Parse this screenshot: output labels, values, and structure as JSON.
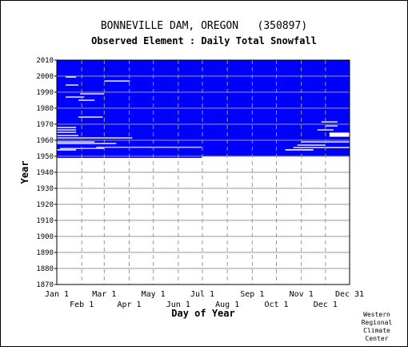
{
  "chart_data": {
    "type": "heatmap",
    "title": "BONNEVILLE DAM, OREGON   (350897)",
    "subtitle": "Observed Element : Daily Total Snowfall",
    "xlabel": "Day of Year",
    "ylabel": "Year",
    "xlim": [
      1,
      365
    ],
    "ylim": [
      1870,
      2010
    ],
    "x_ticks_upper": [
      {
        "label": "Jan 1",
        "day": 1
      },
      {
        "label": "Mar 1",
        "day": 60
      },
      {
        "label": "May 1",
        "day": 121
      },
      {
        "label": "Jul 1",
        "day": 182
      },
      {
        "label": "Sep 1",
        "day": 244
      },
      {
        "label": "Nov 1",
        "day": 305
      },
      {
        "label": "Dec 31",
        "day": 365
      }
    ],
    "x_ticks_lower": [
      {
        "label": "Feb 1",
        "day": 32
      },
      {
        "label": "Apr 1",
        "day": 91
      },
      {
        "label": "Jun 1",
        "day": 152
      },
      {
        "label": "Aug 1",
        "day": 213
      },
      {
        "label": "Oct 1",
        "day": 274
      },
      {
        "label": "Dec 1",
        "day": 335
      }
    ],
    "y_ticks": [
      1870,
      1880,
      1890,
      1900,
      1910,
      1920,
      1930,
      1940,
      1950,
      1960,
      1970,
      1980,
      1990,
      2000,
      2010
    ],
    "data_color": "#0000ff",
    "data_blocks": [
      {
        "day_start": 1,
        "day_end": 365,
        "year_start": 1950,
        "year_end": 2010
      },
      {
        "day_start": 1,
        "day_end": 181,
        "year_start": 1949,
        "year_end": 1950
      }
    ],
    "gaps": [
      {
        "day_start": 1,
        "day_end": 25,
        "year_start": 1953.6,
        "year_end": 1954.4
      },
      {
        "day_start": 5,
        "day_end": 60,
        "year_start": 1954.6,
        "year_end": 1955.2
      },
      {
        "day_start": 50,
        "day_end": 181,
        "year_start": 1955.3,
        "year_end": 1955.9
      },
      {
        "day_start": 1,
        "day_end": 75,
        "year_start": 1957.6,
        "year_end": 1958.3
      },
      {
        "day_start": 1,
        "day_end": 48,
        "year_start": 1958.6,
        "year_end": 1959.3
      },
      {
        "day_start": 1,
        "day_end": 95,
        "year_start": 1961.1,
        "year_end": 1961.8
      },
      {
        "day_start": 1,
        "day_end": 28,
        "year_start": 1962.6,
        "year_end": 1963.3
      },
      {
        "day_start": 1,
        "day_end": 25,
        "year_start": 1964.6,
        "year_end": 1965.3
      },
      {
        "day_start": 1,
        "day_end": 25,
        "year_start": 1966.1,
        "year_end": 1966.8
      },
      {
        "day_start": 1,
        "day_end": 25,
        "year_start": 1967.6,
        "year_end": 1968.3
      },
      {
        "day_start": 28,
        "day_end": 58,
        "year_start": 1974.1,
        "year_end": 1974.8
      },
      {
        "day_start": 28,
        "day_end": 48,
        "year_start": 1984.6,
        "year_end": 1985.3
      },
      {
        "day_start": 12,
        "day_end": 35,
        "year_start": 1986.6,
        "year_end": 1987.3
      },
      {
        "day_start": 30,
        "day_end": 60,
        "year_start": 1988.6,
        "year_end": 1989.3
      },
      {
        "day_start": 12,
        "day_end": 28,
        "year_start": 1994.1,
        "year_end": 1994.8
      },
      {
        "day_start": 60,
        "day_end": 92,
        "year_start": 1996.6,
        "year_end": 1997.3
      },
      {
        "day_start": 12,
        "day_end": 25,
        "year_start": 1999.1,
        "year_end": 1999.8
      },
      {
        "day_start": 285,
        "day_end": 320,
        "year_start": 1953.6,
        "year_end": 1954.4
      },
      {
        "day_start": 295,
        "day_end": 365,
        "year_start": 1955.1,
        "year_end": 1955.8
      },
      {
        "day_start": 300,
        "day_end": 335,
        "year_start": 1956.6,
        "year_end": 1957.3
      },
      {
        "day_start": 305,
        "day_end": 365,
        "year_start": 1958.6,
        "year_end": 1959.3
      },
      {
        "day_start": 340,
        "day_end": 365,
        "year_start": 1962.2,
        "year_end": 1964.8
      },
      {
        "day_start": 325,
        "day_end": 345,
        "year_start": 1966.1,
        "year_end": 1966.8
      },
      {
        "day_start": 335,
        "day_end": 350,
        "year_start": 1968.6,
        "year_end": 1969.3
      },
      {
        "day_start": 330,
        "day_end": 350,
        "year_start": 1971.1,
        "year_end": 1971.8
      }
    ]
  },
  "credit": [
    "Western",
    "Regional",
    "Climate",
    "Center"
  ]
}
